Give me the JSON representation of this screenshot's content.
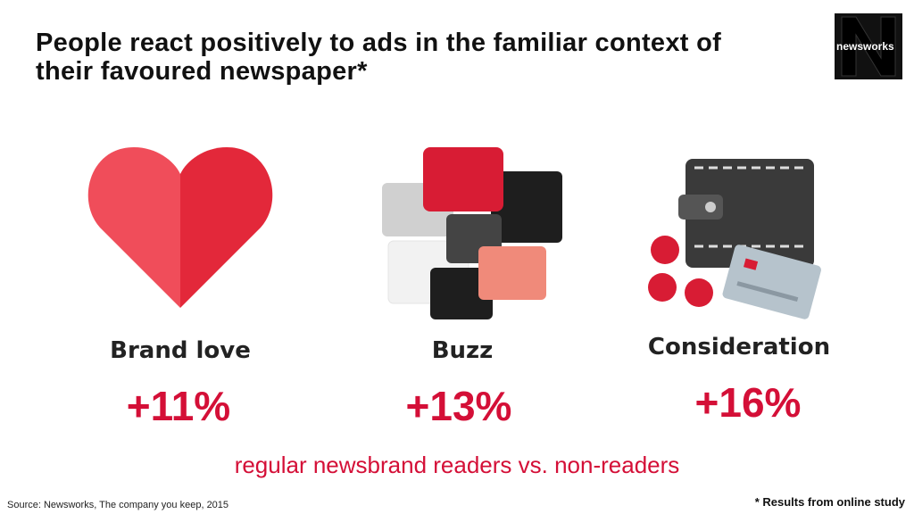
{
  "header": {
    "title": "People react positively to ads in the familiar context of their favoured newspaper*",
    "logo": "newsworks"
  },
  "items": [
    {
      "label": "Brand love",
      "value": "+11%"
    },
    {
      "label": "Buzz",
      "value": "+13%"
    },
    {
      "label": "Consideration",
      "value": "+16%"
    }
  ],
  "subtitle": "regular newsbrand readers vs. non-readers",
  "source": "Source: Newsworks, The company you keep, 2015",
  "footnote": "* Results from online study"
}
